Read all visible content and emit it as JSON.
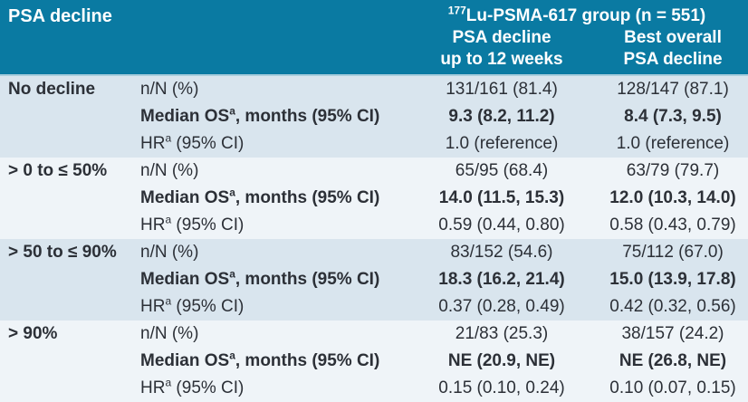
{
  "header": {
    "col1_title": "PSA decline",
    "group_title_sup": "177",
    "group_title_text": "Lu-PSMA-617 group (n = 551)",
    "col3_title_line1": "PSA decline",
    "col3_title_line2": "up to 12 weeks",
    "col4_title_line1": "Best overall",
    "col4_title_line2": "PSA decline"
  },
  "metrics": {
    "n_label": "n/N (%)",
    "os_label_text": "Median OS",
    "os_label_sup": "a",
    "os_label_rest": ", months (95% CI)",
    "hr_label_text": "HR",
    "hr_label_sup": "a",
    "hr_label_rest": " (95% CI)"
  },
  "groups": [
    {
      "label": "No decline",
      "n": [
        "131/161 (81.4)",
        "128/147 (87.1)"
      ],
      "os": [
        "9.3 (8.2, 11.2)",
        "8.4 (7.3, 9.5)"
      ],
      "hr": [
        "1.0 (reference)",
        "1.0 (reference)"
      ]
    },
    {
      "label": "> 0 to ≤ 50%",
      "n": [
        "65/95 (68.4)",
        "63/79 (79.7)"
      ],
      "os": [
        "14.0 (11.5, 15.3)",
        "12.0 (10.3, 14.0)"
      ],
      "hr": [
        "0.59 (0.44, 0.80)",
        "0.58 (0.43, 0.79)"
      ]
    },
    {
      "label": "> 50 to ≤ 90%",
      "n": [
        "83/152 (54.6)",
        "75/112 (67.0)"
      ],
      "os": [
        "18.3 (16.2, 21.4)",
        "15.0 (13.9, 17.8)"
      ],
      "hr": [
        "0.37 (0.28, 0.49)",
        "0.42 (0.32, 0.56)"
      ]
    },
    {
      "label": "> 90%",
      "n": [
        "21/83 (25.3)",
        "38/157 (24.2)"
      ],
      "os": [
        "NE (20.9, NE)",
        "NE (26.8, NE)"
      ],
      "hr": [
        "0.15 (0.10, 0.24)",
        "0.10 (0.07, 0.15)"
      ]
    }
  ],
  "colors": {
    "header_bg": "#0a7aa2",
    "header_text": "#ffffff",
    "band_dark": "#d9e5ee",
    "band_light": "#eff4f8",
    "text": "#2c3037",
    "header_rule": "#a9cedd"
  }
}
